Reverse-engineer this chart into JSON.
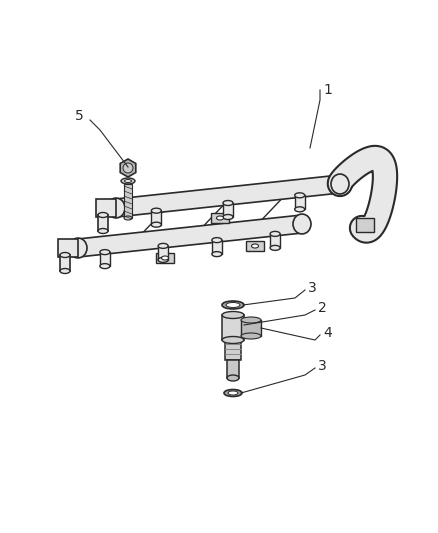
{
  "background_color": "#ffffff",
  "line_color": "#2a2a2a",
  "label_color": "#2a2a2a",
  "figsize": [
    4.39,
    5.33
  ],
  "dpi": 100,
  "tube_color": "#e8e8e8",
  "bracket_color": "#d0d0d0",
  "bolt_color": "#b8b8b8"
}
